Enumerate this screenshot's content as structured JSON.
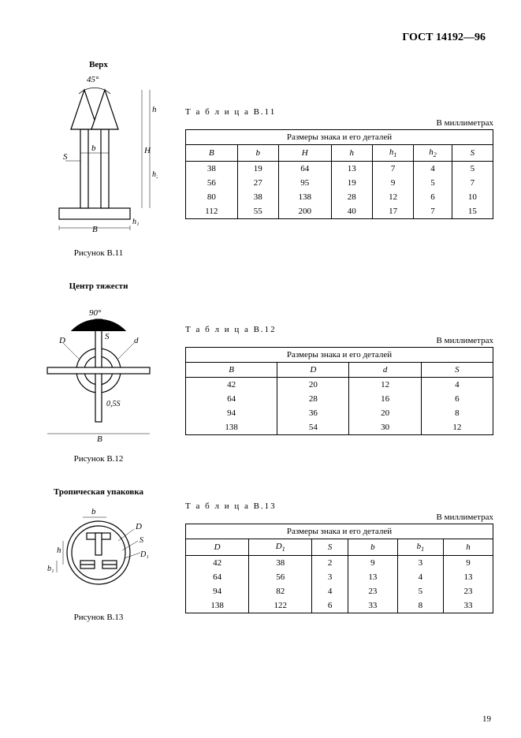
{
  "header": "ГОСТ 14192—96",
  "page_number": "19",
  "sections": [
    {
      "figure_title": "Верх",
      "figure_caption": "Рисунок В.11",
      "table_label": "Т а б л и ц а   В.11",
      "table_units": "В миллиметрах",
      "table_header": "Размеры знака и его деталей",
      "columns": [
        "B",
        "b",
        "H",
        "h",
        "h1",
        "h2",
        "S"
      ],
      "rows": [
        [
          "38",
          "19",
          "64",
          "13",
          "7",
          "4",
          "5"
        ],
        [
          "56",
          "27",
          "95",
          "19",
          "9",
          "5",
          "7"
        ],
        [
          "80",
          "38",
          "138",
          "28",
          "12",
          "6",
          "10"
        ],
        [
          "112",
          "55",
          "200",
          "40",
          "17",
          "7",
          "15"
        ]
      ],
      "angle": "45°",
      "dim_labels": {
        "B": "B",
        "b": "b",
        "H": "H",
        "h": "h",
        "h1": "h₁",
        "h2": "h₂",
        "S": "S"
      }
    },
    {
      "figure_title": "Центр тяжести",
      "figure_caption": "Рисунок В.12",
      "table_label": "Т а б л и ц а   В.12",
      "table_units": "В миллиметрах",
      "table_header": "Размеры знака и его деталей",
      "columns": [
        "B",
        "D",
        "d",
        "S"
      ],
      "rows": [
        [
          "42",
          "20",
          "12",
          "4"
        ],
        [
          "64",
          "28",
          "16",
          "6"
        ],
        [
          "94",
          "36",
          "20",
          "8"
        ],
        [
          "138",
          "54",
          "30",
          "12"
        ]
      ],
      "angle": "90°",
      "dim_labels": {
        "B": "B",
        "D": "D",
        "d": "d",
        "S": "S",
        "r": "0,5S"
      }
    },
    {
      "figure_title": "Тропическая упаковка",
      "figure_caption": "Рисунок В.13",
      "table_label": "Т а б л и ц а   В.13",
      "table_units": "В миллиметрах",
      "table_header": "Размеры знака и его деталей",
      "columns": [
        "D",
        "D1",
        "S",
        "b",
        "b1",
        "h"
      ],
      "rows": [
        [
          "42",
          "38",
          "2",
          "9",
          "3",
          "9"
        ],
        [
          "64",
          "56",
          "3",
          "13",
          "4",
          "13"
        ],
        [
          "94",
          "82",
          "4",
          "23",
          "5",
          "23"
        ],
        [
          "138",
          "122",
          "6",
          "33",
          "8",
          "33"
        ]
      ],
      "dim_labels": {
        "D": "D",
        "D1": "D₁",
        "S": "S",
        "b": "b",
        "b1": "b₁",
        "h": "h"
      }
    }
  ]
}
